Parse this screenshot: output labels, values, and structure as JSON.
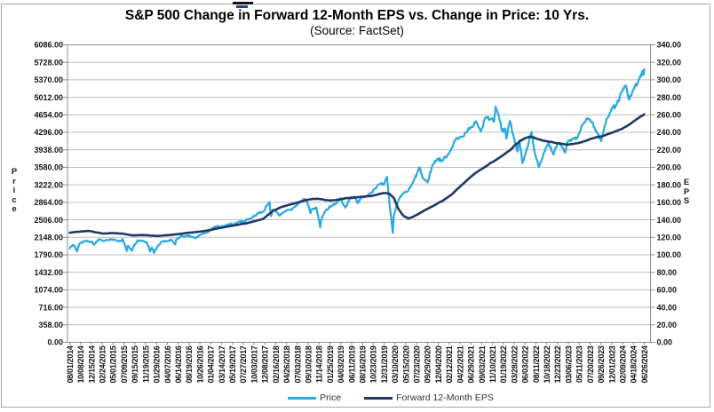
{
  "chart_data": {
    "type": "line",
    "title": "S&P 500 Change in Forward 12-Month EPS vs. Change in Price: 10 Yrs.",
    "subtitle": "(Source: FactSet)",
    "grid": "horizontal",
    "legend_position": "bottom",
    "x_axis": {
      "tick_labels": [
        "08/01/2014",
        "10/08/2014",
        "12/15/2014",
        "02/24/2015",
        "05/01/2015",
        "07/09/2015",
        "09/15/2015",
        "11/19/2015",
        "01/29/2016",
        "04/07/2016",
        "06/14/2016",
        "08/19/2016",
        "10/26/2016",
        "01/04/2017",
        "03/14/2017",
        "05/19/2017",
        "07/27/2017",
        "10/03/2017",
        "12/08/2017",
        "02/16/2018",
        "04/26/2018",
        "07/03/2018",
        "09/10/2018",
        "11/14/2018",
        "01/25/2019",
        "04/03/2019",
        "06/11/2019",
        "08/16/2019",
        "10/23/2019",
        "12/31/2019",
        "03/10/2020",
        "05/15/2020",
        "07/23/2020",
        "09/29/2020",
        "12/04/2020",
        "02/12/2021",
        "04/22/2021",
        "06/29/2021",
        "09/03/2021",
        "11/10/2021",
        "01/19/2022",
        "03/28/2022",
        "06/03/2022",
        "08/11/2022",
        "10/18/2022",
        "12/23/2022",
        "03/06/2023",
        "05/11/2023",
        "07/20/2023",
        "09/26/2023",
        "12/01/2023",
        "02/09/2024",
        "04/18/2024",
        "06/26/2024"
      ],
      "time_span_months": 118.8
    },
    "y_left": {
      "label": "Price",
      "min": 0,
      "max": 6086,
      "step": 358,
      "tick_labels": [
        "6086.00",
        "5728.00",
        "5370.00",
        "5012.00",
        "4654.00",
        "4296.00",
        "3938.00",
        "3580.00",
        "3222.00",
        "2864.00",
        "2506.00",
        "2148.00",
        "1790.00",
        "1432.00",
        "1074.00",
        "716.00",
        "358.00",
        "0.00"
      ]
    },
    "y_right": {
      "label": "EPS",
      "min": 0,
      "max": 340,
      "step": 20,
      "tick_labels": [
        "340.00",
        "320.00",
        "300.00",
        "280.00",
        "260.00",
        "240.00",
        "220.00",
        "200.00",
        "180.00",
        "160.00",
        "140.00",
        "120.00",
        "100.00",
        "80.00",
        "60.00",
        "40.00",
        "20.00",
        "0.00"
      ]
    },
    "series": [
      {
        "name": "Price",
        "axis": "left",
        "color": "#2AA9E0",
        "points_t_months_value": [
          [
            0,
            1925
          ],
          [
            0.6,
            1988
          ],
          [
            1,
            1972
          ],
          [
            1.5,
            1862
          ],
          [
            2,
            2018
          ],
          [
            3,
            2068
          ],
          [
            4,
            2059
          ],
          [
            4.6,
            2062
          ],
          [
            5,
            1995
          ],
          [
            5.5,
            2058
          ],
          [
            6,
            2105
          ],
          [
            7,
            2068
          ],
          [
            8,
            2086
          ],
          [
            9,
            2107
          ],
          [
            10,
            2063
          ],
          [
            10.5,
            2077
          ],
          [
            11,
            2104
          ],
          [
            11.8,
            1868
          ],
          [
            12,
            1972
          ],
          [
            12.9,
            1872
          ],
          [
            13,
            1920
          ],
          [
            14,
            2079
          ],
          [
            15,
            2080
          ],
          [
            16,
            2044
          ],
          [
            16.6,
            1859
          ],
          [
            17,
            1940
          ],
          [
            17.4,
            1829
          ],
          [
            18,
            1932
          ],
          [
            19,
            2060
          ],
          [
            20,
            2065
          ],
          [
            21,
            2097
          ],
          [
            21.8,
            2001
          ],
          [
            22,
            2099
          ],
          [
            23,
            2174
          ],
          [
            24,
            2171
          ],
          [
            25,
            2168
          ],
          [
            26,
            2126
          ],
          [
            27,
            2199
          ],
          [
            28,
            2239
          ],
          [
            29,
            2279
          ],
          [
            30,
            2364
          ],
          [
            31,
            2363
          ],
          [
            32,
            2384
          ],
          [
            33,
            2412
          ],
          [
            34,
            2423
          ],
          [
            35,
            2470
          ],
          [
            36,
            2472
          ],
          [
            37,
            2519
          ],
          [
            38,
            2575
          ],
          [
            39,
            2648
          ],
          [
            40,
            2674
          ],
          [
            41,
            2824
          ],
          [
            41.3,
            2873
          ],
          [
            41.6,
            2581
          ],
          [
            42,
            2714
          ],
          [
            43,
            2641
          ],
          [
            43.4,
            2588
          ],
          [
            44,
            2648
          ],
          [
            45,
            2705
          ],
          [
            46,
            2718
          ],
          [
            47,
            2816
          ],
          [
            48,
            2902
          ],
          [
            49,
            2914
          ],
          [
            49.8,
            2641
          ],
          [
            50,
            2712
          ],
          [
            51,
            2760
          ],
          [
            51.8,
            2351
          ],
          [
            52,
            2507
          ],
          [
            53,
            2704
          ],
          [
            54,
            2784
          ],
          [
            55,
            2834
          ],
          [
            56,
            2946
          ],
          [
            57,
            2752
          ],
          [
            58,
            2942
          ],
          [
            59,
            2980
          ],
          [
            59.5,
            2847
          ],
          [
            60,
            2926
          ],
          [
            61,
            2977
          ],
          [
            62,
            3038
          ],
          [
            63,
            3141
          ],
          [
            64,
            3231
          ],
          [
            65,
            3226
          ],
          [
            65.6,
            3386
          ],
          [
            66,
            2954
          ],
          [
            66.8,
            2237
          ],
          [
            67,
            2585
          ],
          [
            68,
            2912
          ],
          [
            69,
            3044
          ],
          [
            70,
            3100
          ],
          [
            71,
            3271
          ],
          [
            72,
            3500
          ],
          [
            72.3,
            3580
          ],
          [
            73,
            3363
          ],
          [
            74,
            3270
          ],
          [
            75,
            3622
          ],
          [
            76,
            3756
          ],
          [
            77,
            3714
          ],
          [
            78,
            3811
          ],
          [
            79,
            3973
          ],
          [
            80,
            4181
          ],
          [
            81,
            4204
          ],
          [
            82,
            4298
          ],
          [
            83,
            4395
          ],
          [
            84,
            4523
          ],
          [
            85,
            4308
          ],
          [
            86,
            4605
          ],
          [
            87,
            4567
          ],
          [
            87.7,
            4513
          ],
          [
            88,
            4766
          ],
          [
            88.1,
            4797
          ],
          [
            89,
            4516
          ],
          [
            89.4,
            4327
          ],
          [
            90,
            4374
          ],
          [
            90.3,
            4170
          ],
          [
            91,
            4530
          ],
          [
            92,
            4132
          ],
          [
            92.6,
            3900
          ],
          [
            93,
            4132
          ],
          [
            93.6,
            3667
          ],
          [
            94,
            3785
          ],
          [
            95,
            4130
          ],
          [
            95.5,
            4305
          ],
          [
            96,
            3955
          ],
          [
            97,
            3586
          ],
          [
            98,
            3872
          ],
          [
            99,
            4080
          ],
          [
            100,
            3840
          ],
          [
            101,
            4077
          ],
          [
            102,
            3970
          ],
          [
            102.4,
            3880
          ],
          [
            103,
            4109
          ],
          [
            104,
            4169
          ],
          [
            105,
            4180
          ],
          [
            106,
            4450
          ],
          [
            107,
            4589
          ],
          [
            108,
            4508
          ],
          [
            109,
            4288
          ],
          [
            109.9,
            4117
          ],
          [
            111,
            4568
          ],
          [
            112,
            4770
          ],
          [
            113,
            4846
          ],
          [
            114,
            5096
          ],
          [
            115,
            5254
          ],
          [
            115.6,
            4967
          ],
          [
            116,
            5036
          ],
          [
            117,
            5278
          ],
          [
            117.5,
            5310
          ],
          [
            118,
            5440
          ],
          [
            118.4,
            5530
          ],
          [
            118.6,
            5480
          ],
          [
            118.8,
            5590
          ]
        ]
      },
      {
        "name": "Forward 12-Month EPS",
        "axis": "right",
        "color": "#1F3864",
        "points_t_months_value": [
          [
            0,
            125.3
          ],
          [
            1,
            126
          ],
          [
            2,
            126.5
          ],
          [
            3,
            127
          ],
          [
            4,
            127.3
          ],
          [
            5,
            126.2
          ],
          [
            6,
            125.2
          ],
          [
            7,
            124.2
          ],
          [
            8,
            124.5
          ],
          [
            9,
            124.8
          ],
          [
            10,
            124.5
          ],
          [
            11,
            124.2
          ],
          [
            12,
            123.2
          ],
          [
            13,
            122.2
          ],
          [
            14,
            122.4
          ],
          [
            15,
            122.6
          ],
          [
            16,
            122.4
          ],
          [
            17,
            121.9
          ],
          [
            18,
            121.6
          ],
          [
            19,
            121.9
          ],
          [
            20,
            122.4
          ],
          [
            21,
            122.9
          ],
          [
            22,
            123.4
          ],
          [
            23,
            124.1
          ],
          [
            24,
            124.9
          ],
          [
            25,
            125.4
          ],
          [
            26,
            125.9
          ],
          [
            27,
            126.6
          ],
          [
            28,
            127.4
          ],
          [
            29,
            128.4
          ],
          [
            30,
            129.6
          ],
          [
            31,
            130.6
          ],
          [
            32,
            131.6
          ],
          [
            33,
            132.6
          ],
          [
            34,
            133.6
          ],
          [
            35,
            134.6
          ],
          [
            36,
            135.6
          ],
          [
            37,
            136.6
          ],
          [
            38,
            138.1
          ],
          [
            39,
            139.6
          ],
          [
            40,
            141.1
          ],
          [
            41,
            145.6
          ],
          [
            42,
            150.1
          ],
          [
            43,
            152.6
          ],
          [
            44,
            155.1
          ],
          [
            45,
            156.6
          ],
          [
            46,
            158.1
          ],
          [
            47,
            159.6
          ],
          [
            48,
            161.1
          ],
          [
            49,
            162.6
          ],
          [
            50,
            163.6
          ],
          [
            51,
            164.1
          ],
          [
            52,
            163.6
          ],
          [
            53,
            162.6
          ],
          [
            54,
            162.1
          ],
          [
            55,
            162.6
          ],
          [
            56,
            163.6
          ],
          [
            57,
            164.6
          ],
          [
            58,
            165.1
          ],
          [
            59,
            165.6
          ],
          [
            60,
            166.1
          ],
          [
            61,
            166.6
          ],
          [
            62,
            167.1
          ],
          [
            63,
            168.1
          ],
          [
            64,
            169.6
          ],
          [
            65,
            170.6
          ],
          [
            66,
            170.1
          ],
          [
            67,
            165.1
          ],
          [
            68,
            152.1
          ],
          [
            69,
            144.5
          ],
          [
            70,
            141.5
          ],
          [
            71,
            143.5
          ],
          [
            72,
            146.5
          ],
          [
            73,
            149.5
          ],
          [
            74,
            152.5
          ],
          [
            75,
            155.5
          ],
          [
            76,
            158.5
          ],
          [
            77,
            161.5
          ],
          [
            78,
            165
          ],
          [
            79,
            169
          ],
          [
            80,
            174.5
          ],
          [
            81,
            179.5
          ],
          [
            82,
            184.5
          ],
          [
            83,
            189.5
          ],
          [
            84,
            194
          ],
          [
            85,
            197.5
          ],
          [
            86,
            201
          ],
          [
            87,
            205
          ],
          [
            88,
            208
          ],
          [
            89,
            211.5
          ],
          [
            90,
            215.5
          ],
          [
            91,
            219.5
          ],
          [
            92,
            225
          ],
          [
            93,
            229.5
          ],
          [
            94,
            233
          ],
          [
            95,
            234.8
          ],
          [
            96,
            234
          ],
          [
            97,
            232
          ],
          [
            98,
            230.5
          ],
          [
            99,
            229.5
          ],
          [
            100,
            228.5
          ],
          [
            101,
            227.5
          ],
          [
            102,
            226.5
          ],
          [
            103,
            226
          ],
          [
            104,
            226.5
          ],
          [
            105,
            227.5
          ],
          [
            106,
            229
          ],
          [
            107,
            231
          ],
          [
            108,
            233
          ],
          [
            109,
            234.5
          ],
          [
            110,
            235.5
          ],
          [
            111,
            237.5
          ],
          [
            112,
            239.5
          ],
          [
            113,
            241.5
          ],
          [
            114,
            243.5
          ],
          [
            115,
            246.5
          ],
          [
            116,
            250
          ],
          [
            117,
            254
          ],
          [
            118,
            258
          ],
          [
            118.8,
            260.5
          ]
        ]
      }
    ]
  },
  "legend": {
    "items": [
      {
        "label": "Price",
        "color": "#2AA9E0"
      },
      {
        "label": "Forward 12-Month EPS",
        "color": "#1F3864"
      }
    ]
  }
}
